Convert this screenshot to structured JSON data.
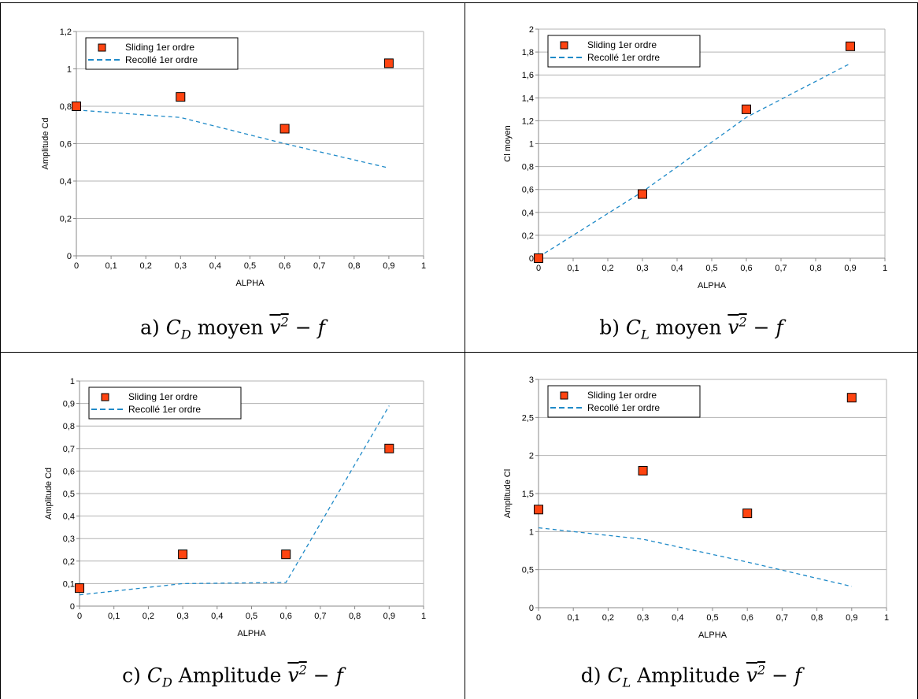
{
  "colors": {
    "marker_fill": "#ff4411",
    "marker_stroke": "#000000",
    "line": "#1f8ac8",
    "grid": "#b3b3b3",
    "axis": "#888888"
  },
  "panels": [
    {
      "caption": {
        "prefix": "a)",
        "var": "C",
        "sub": "D",
        "word": "moyen",
        "expr": "v",
        "sup": "2",
        "tail": "− f"
      },
      "chart_data": {
        "type": "scatter",
        "xlabel": "ALPHA",
        "ylabel": "Amplitude Cd",
        "xlim": [
          0,
          1
        ],
        "ylim": [
          0,
          1.2
        ],
        "xticks": [
          "0",
          "0,1",
          "0,2",
          "0,3",
          "0,4",
          "0,5",
          "0,6",
          "0,7",
          "0,8",
          "0,9",
          "1"
        ],
        "yticks": [
          "0",
          "0,2",
          "0,4",
          "0,6",
          "0,8",
          "1",
          "1,2"
        ],
        "legend_position": "top-left",
        "series": [
          {
            "name": "Sliding 1er ordre",
            "kind": "markers",
            "x": [
              0,
              0.3,
              0.6,
              0.9
            ],
            "y": [
              0.8,
              0.85,
              0.68,
              1.03
            ]
          },
          {
            "name": "Recollé 1er ordre",
            "kind": "dashed-line",
            "x": [
              0,
              0.3,
              0.6,
              0.9
            ],
            "y": [
              0.78,
              0.74,
              0.6,
              0.47
            ]
          }
        ]
      }
    },
    {
      "caption": {
        "prefix": "b)",
        "var": "C",
        "sub": "L",
        "word": "moyen",
        "expr": "v",
        "sup": "2",
        "tail": "− f"
      },
      "chart_data": {
        "type": "scatter",
        "xlabel": "ALPHA",
        "ylabel": "Cl moyen",
        "xlim": [
          0,
          1
        ],
        "ylim": [
          0,
          2
        ],
        "xticks": [
          "0",
          "0,1",
          "0,2",
          "0,3",
          "0,4",
          "0,5",
          "0,6",
          "0,7",
          "0,8",
          "0,9",
          "1"
        ],
        "yticks": [
          "0",
          "0,2",
          "0,4",
          "0,6",
          "0,8",
          "1",
          "1,2",
          "1,4",
          "1,6",
          "1,8",
          "2"
        ],
        "legend_position": "top-left",
        "series": [
          {
            "name": "Sliding 1er ordre",
            "kind": "markers",
            "x": [
              0,
              0.3,
              0.6,
              0.9
            ],
            "y": [
              0,
              0.56,
              1.3,
              1.85
            ]
          },
          {
            "name": "Recollé 1er ordre",
            "kind": "dashed-line",
            "x": [
              0,
              0.3,
              0.6,
              0.9
            ],
            "y": [
              0.01,
              0.58,
              1.23,
              1.7
            ]
          }
        ]
      }
    },
    {
      "caption": {
        "prefix": "c)",
        "var": "C",
        "sub": "D",
        "word": "Amplitude",
        "expr": "v",
        "sup": "2",
        "tail": "− f"
      },
      "chart_data": {
        "type": "scatter",
        "xlabel": "ALPHA",
        "ylabel": "Amplitude Cd",
        "xlim": [
          0,
          1
        ],
        "ylim": [
          0,
          1
        ],
        "xticks": [
          "0",
          "0,1",
          "0,2",
          "0,3",
          "0,4",
          "0,5",
          "0,6",
          "0,7",
          "0,8",
          "0,9",
          "1"
        ],
        "yticks": [
          "0",
          "0,1",
          "0,2",
          "0,3",
          "0,4",
          "0,5",
          "0,6",
          "0,7",
          "0,8",
          "0,9",
          "1"
        ],
        "legend_position": "top-left",
        "series": [
          {
            "name": "Sliding 1er ordre",
            "kind": "markers",
            "x": [
              0,
              0.3,
              0.6,
              0.9
            ],
            "y": [
              0.08,
              0.23,
              0.23,
              0.7
            ]
          },
          {
            "name": "Recollé 1er ordre",
            "kind": "dashed-line",
            "x": [
              0,
              0.3,
              0.6,
              0.9
            ],
            "y": [
              0.05,
              0.1,
              0.105,
              0.89
            ]
          }
        ]
      }
    },
    {
      "caption": {
        "prefix": "d)",
        "var": "C",
        "sub": "L",
        "word": "Amplitude",
        "expr": "v",
        "sup": "2",
        "tail": "− f"
      },
      "chart_data": {
        "type": "scatter",
        "xlabel": "ALPHA",
        "ylabel": "Amplitude Cl",
        "xlim": [
          0,
          1
        ],
        "ylim": [
          0,
          3
        ],
        "xticks": [
          "0",
          "0,1",
          "0,2",
          "0,3",
          "0,4",
          "0,5",
          "0,6",
          "0,7",
          "0,8",
          "0,9",
          "1"
        ],
        "yticks": [
          "0",
          "0,5",
          "1",
          "1,5",
          "2",
          "2,5",
          "3"
        ],
        "legend_position": "top-left",
        "series": [
          {
            "name": "Sliding 1er ordre",
            "kind": "markers",
            "x": [
              0,
              0.3,
              0.6,
              0.9
            ],
            "y": [
              1.29,
              1.8,
              1.24,
              2.76
            ]
          },
          {
            "name": "Recollé 1er ordre",
            "kind": "dashed-line",
            "x": [
              0,
              0.3,
              0.6,
              0.9
            ],
            "y": [
              1.05,
              0.9,
              0.6,
              0.28
            ]
          }
        ]
      }
    }
  ]
}
